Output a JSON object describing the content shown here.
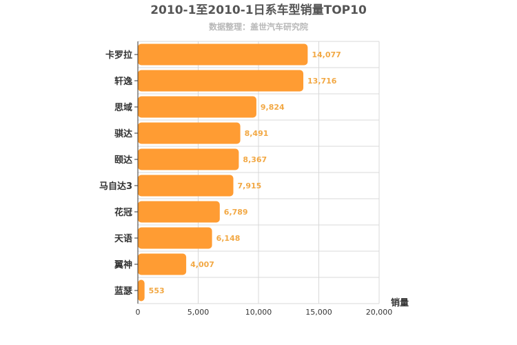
{
  "chart_data": {
    "type": "bar",
    "orientation": "horizontal",
    "title": "2010-1至2010-1日系车型销量TOP10",
    "subtitle": "数据整理：盖世汽车研究院",
    "categories": [
      "卡罗拉",
      "轩逸",
      "思域",
      "骐达",
      "颐达",
      "马自达3",
      "花冠",
      "天语",
      "翼神",
      "蓝瑟"
    ],
    "values": [
      14077,
      13716,
      9824,
      8491,
      8367,
      7915,
      6789,
      6148,
      4007,
      553
    ],
    "data_labels": [
      "14,077",
      "13,716",
      "9,824",
      "8,491",
      "8,367",
      "7,915",
      "6,789",
      "6,148",
      "4,007",
      "553"
    ],
    "xlabel": "销量",
    "ylabel": "",
    "xlim": [
      0,
      20000
    ],
    "x_ticks": [
      0,
      5000,
      10000,
      15000,
      20000
    ],
    "x_tick_labels": [
      "0",
      "5,000",
      "10,000",
      "15,000",
      "20,000"
    ],
    "grid": true,
    "legend": "none",
    "colors": {
      "bar": "#ff9c33",
      "data_label": "#f2a844",
      "grid": "#d8d8d8",
      "axis": "#333333"
    }
  }
}
